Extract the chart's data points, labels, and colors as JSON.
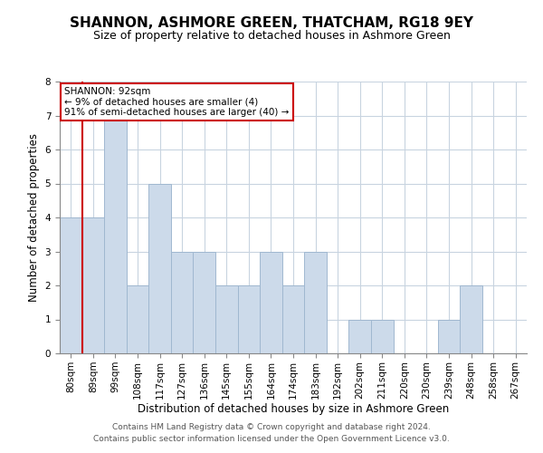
{
  "title": "SHANNON, ASHMORE GREEN, THATCHAM, RG18 9EY",
  "subtitle": "Size of property relative to detached houses in Ashmore Green",
  "xlabel": "Distribution of detached houses by size in Ashmore Green",
  "ylabel": "Number of detached properties",
  "bins": [
    "80sqm",
    "89sqm",
    "99sqm",
    "108sqm",
    "117sqm",
    "127sqm",
    "136sqm",
    "145sqm",
    "155sqm",
    "164sqm",
    "174sqm",
    "183sqm",
    "192sqm",
    "202sqm",
    "211sqm",
    "220sqm",
    "230sqm",
    "239sqm",
    "248sqm",
    "258sqm",
    "267sqm"
  ],
  "counts": [
    4,
    4,
    7,
    2,
    5,
    3,
    3,
    2,
    2,
    3,
    2,
    3,
    0,
    1,
    1,
    0,
    0,
    1,
    2,
    0,
    0
  ],
  "bar_color": "#ccdaea",
  "bar_edge_color": "#a0b8d0",
  "subject_line_color": "#cc0000",
  "subject_line_bin_index": 1,
  "annotation_text": "SHANNON: 92sqm\n← 9% of detached houses are smaller (4)\n91% of semi-detached houses are larger (40) →",
  "annotation_box_color": "#ffffff",
  "annotation_box_edge_color": "#cc0000",
  "ylim": [
    0,
    8
  ],
  "yticks": [
    0,
    1,
    2,
    3,
    4,
    5,
    6,
    7,
    8
  ],
  "grid_color": "#c8d4e0",
  "footer_line1": "Contains HM Land Registry data © Crown copyright and database right 2024.",
  "footer_line2": "Contains public sector information licensed under the Open Government Licence v3.0.",
  "title_fontsize": 11,
  "subtitle_fontsize": 9,
  "tick_fontsize": 7.5,
  "ylabel_fontsize": 8.5,
  "xlabel_fontsize": 8.5,
  "footer_fontsize": 6.5
}
